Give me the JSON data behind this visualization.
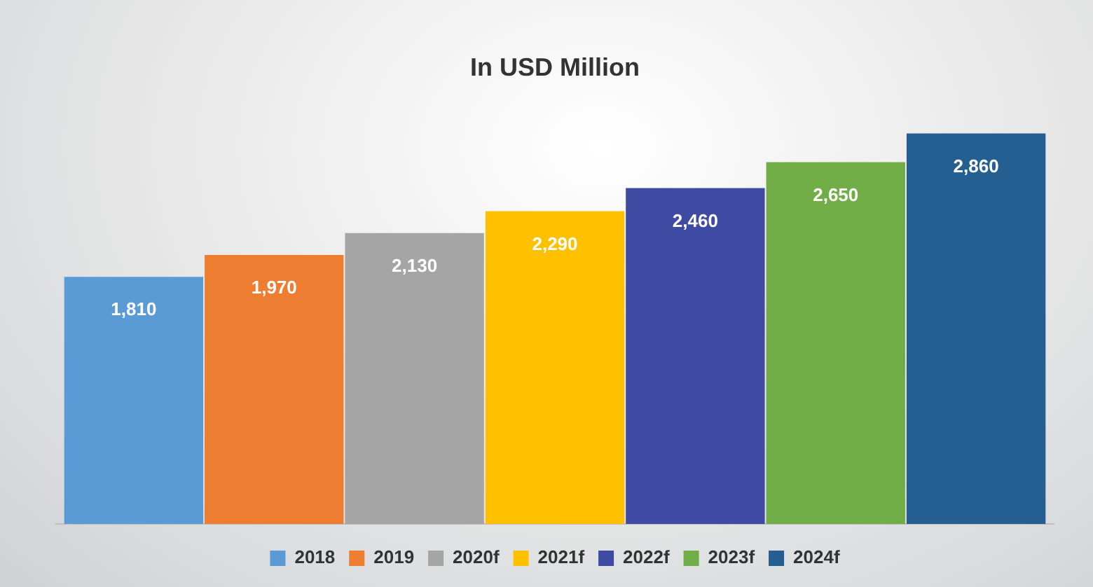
{
  "chart_data": {
    "type": "bar",
    "title": "In USD Million",
    "categories": [
      null
    ],
    "series": [
      {
        "name": "2018",
        "color": "#5b9bd5",
        "values": [
          1810
        ],
        "value_labels": [
          "1,810"
        ]
      },
      {
        "name": "2019",
        "color": "#ed7d31",
        "values": [
          1970
        ],
        "value_labels": [
          "1,970"
        ]
      },
      {
        "name": "2020f",
        "color": "#a5a5a5",
        "values": [
          2130
        ],
        "value_labels": [
          "2,130"
        ]
      },
      {
        "name": "2021f",
        "color": "#ffc000",
        "values": [
          2290
        ],
        "value_labels": [
          "2,290"
        ]
      },
      {
        "name": "2022f",
        "color": "#3f4aa3",
        "values": [
          2460
        ],
        "value_labels": [
          "2,460"
        ]
      },
      {
        "name": "2023f",
        "color": "#70ad47",
        "values": [
          2650
        ],
        "value_labels": [
          "2,650"
        ]
      },
      {
        "name": "2024f",
        "color": "#255e91",
        "values": [
          2860
        ],
        "value_labels": [
          "2,860"
        ]
      }
    ],
    "tick_labels": false,
    "grid": false,
    "legend": "bottom"
  }
}
